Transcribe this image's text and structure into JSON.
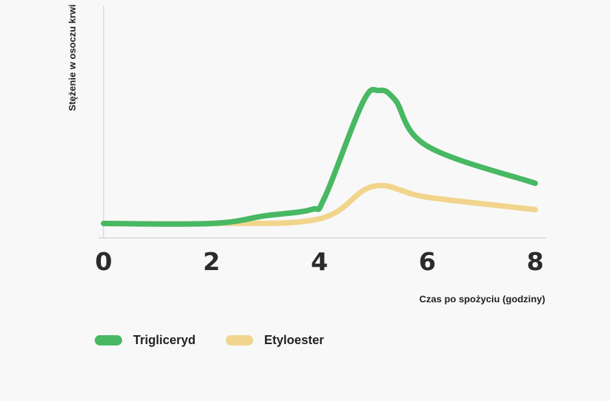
{
  "chart_data": {
    "type": "line",
    "xlabel": "Czas po spożyciu (godziny)",
    "ylabel": "Stężenie w osoczu krwi",
    "x_ticks": [
      "0",
      "2",
      "4",
      "6",
      "8"
    ],
    "xlim": [
      0,
      8
    ],
    "grid": false,
    "legend_position": "bottom-left",
    "series": [
      {
        "name": "Trigliceryd",
        "color": "#48b863",
        "points": [
          [
            0,
            0.0
          ],
          [
            2,
            0.0
          ],
          [
            3,
            0.05
          ],
          [
            3.85,
            0.09
          ],
          [
            4.1,
            0.17
          ],
          [
            4.8,
            0.78
          ],
          [
            5.1,
            0.86
          ],
          [
            5.4,
            0.8
          ],
          [
            6.0,
            0.5
          ],
          [
            8,
            0.26
          ]
        ]
      },
      {
        "name": "Etyloester",
        "color": "#f1d58c",
        "points": [
          [
            0,
            0.0
          ],
          [
            2,
            0.0
          ],
          [
            4,
            0.03
          ],
          [
            5.0,
            0.24
          ],
          [
            6.0,
            0.17
          ],
          [
            8,
            0.09
          ]
        ]
      }
    ]
  }
}
